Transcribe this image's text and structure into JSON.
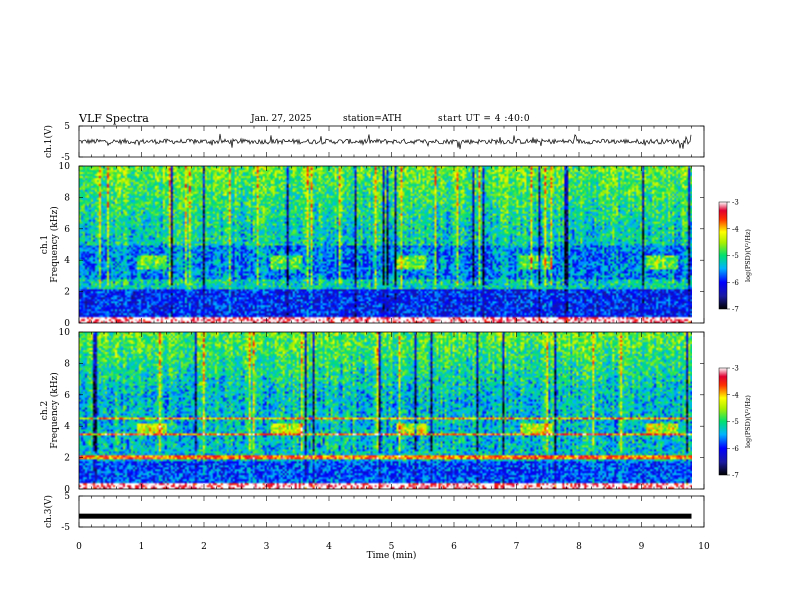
{
  "header": {
    "title": "VLF Spectra",
    "date": "Jan. 27, 2025",
    "station": "station=ATH",
    "start": "start UT =  4 :40:0"
  },
  "chart_data": [
    {
      "type": "line",
      "panel": "ch1-waveform",
      "ylabel": "ch.1(V)",
      "ylim": [
        -5,
        5
      ],
      "yticks": [
        "5",
        "-5"
      ],
      "xlim": [
        0,
        10
      ],
      "data_end_min": 9.8,
      "signal": "noise-like waveform around 0 V, amplitude about ±1 V with spikes to about ±2.5 V"
    },
    {
      "type": "heatmap",
      "panel": "ch1-spectrogram",
      "ylabel": "ch.1 Frequency (kHz)",
      "ylim": [
        0,
        10
      ],
      "yticks": [
        "0",
        "2",
        "4",
        "6",
        "8",
        "10"
      ],
      "xlim": [
        0,
        10
      ],
      "data_end_min": 9.8,
      "colorbar": {
        "label": "log(PSD)(V²/Hz)",
        "range": [
          -7,
          -3
        ],
        "ticks": [
          "-3",
          "-4",
          "-5",
          "-6",
          "-7"
        ]
      },
      "burst_centers_min": [
        1.15,
        3.3,
        5.3,
        7.3,
        9.3
      ],
      "burst_khz": [
        3.6,
        4.4
      ]
    },
    {
      "type": "heatmap",
      "panel": "ch2-spectrogram",
      "ylabel": "ch.2 Frequency (kHz)",
      "ylim": [
        0,
        10
      ],
      "yticks": [
        "0",
        "2",
        "4",
        "6",
        "8",
        "10"
      ],
      "xlim": [
        0,
        10
      ],
      "data_end_min": 9.8,
      "colorbar": {
        "label": "log(PSD)(V²/Hz)",
        "range": [
          -7,
          -3
        ],
        "ticks": [
          "-3",
          "-4",
          "-5",
          "-6",
          "-7"
        ]
      },
      "burst_centers_min": [
        1.15,
        3.3,
        5.3,
        7.3,
        9.3
      ],
      "lines_khz": [
        2.1,
        3.6,
        4.6
      ]
    },
    {
      "type": "line",
      "panel": "ch3-waveform",
      "ylabel": "ch.3(V)",
      "ylim": [
        -5,
        5
      ],
      "yticks": [
        "5",
        "-5"
      ],
      "xlim": [
        0,
        10
      ],
      "data_end_min": 9.8,
      "signal": "flat near -1.5 V"
    }
  ],
  "xaxis": {
    "label": "Time (min)",
    "ticks": [
      "0",
      "1",
      "2",
      "3",
      "4",
      "5",
      "6",
      "7",
      "8",
      "9",
      "10"
    ]
  }
}
